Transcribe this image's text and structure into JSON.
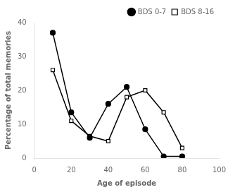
{
  "chart_data": {
    "type": "line",
    "xlabel": "Age of episode",
    "ylabel": "Percentage of total memories",
    "x": [
      10,
      20,
      30,
      40,
      50,
      60,
      70,
      80
    ],
    "series": [
      {
        "name": "BDS 0-7",
        "color": "#000000",
        "marker": "circle",
        "values": [
          37,
          13.5,
          6,
          16,
          21,
          8.5,
          0.5,
          0.5
        ]
      },
      {
        "name": "BDS 8-16",
        "color": "#000000",
        "marker": "square-open",
        "values": [
          26,
          11,
          6.5,
          5,
          18,
          20,
          13.5,
          3
        ]
      }
    ],
    "xlim": [
      0,
      100
    ],
    "ylim": [
      0,
      40
    ],
    "xticks": [
      0,
      20,
      40,
      60,
      80,
      100
    ],
    "yticks": [
      0,
      10,
      20,
      30,
      40
    ],
    "grid": false,
    "legend": "upper right"
  }
}
